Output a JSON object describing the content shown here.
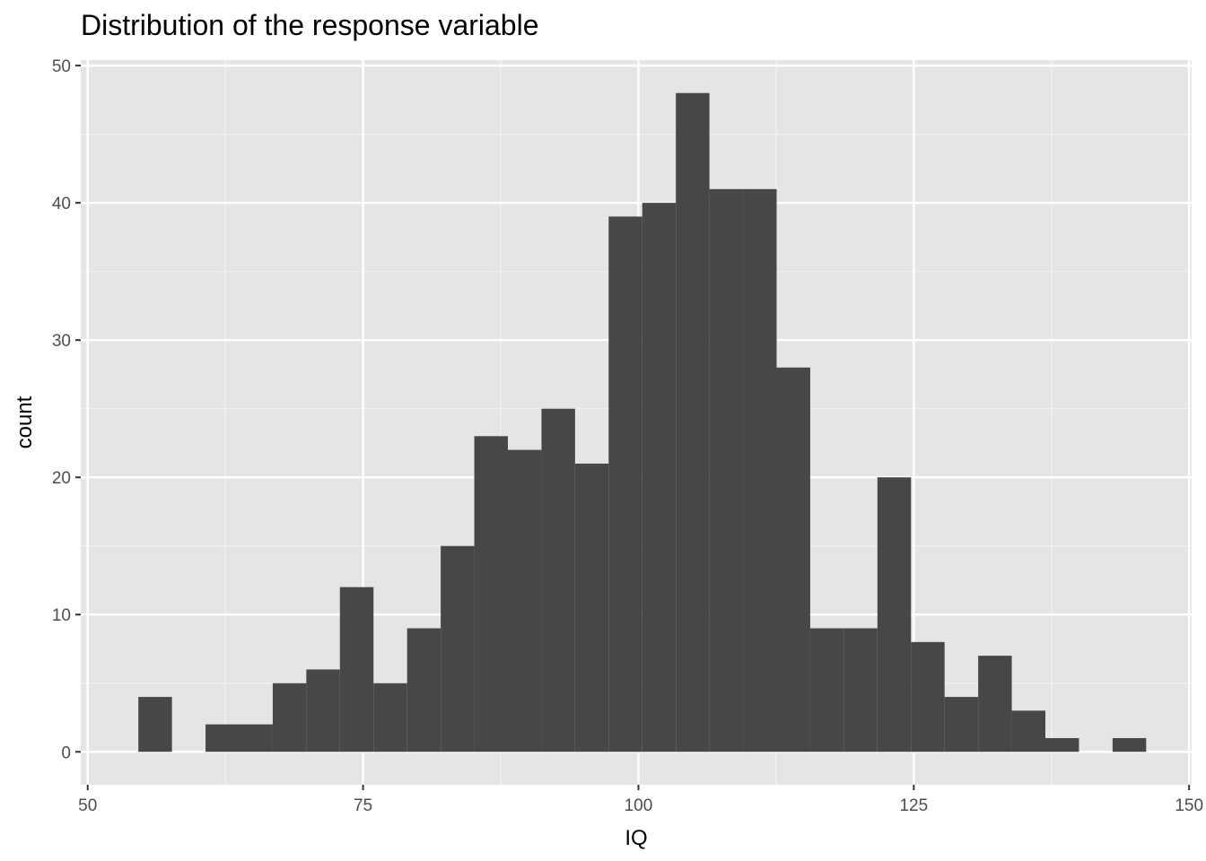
{
  "chart_data": {
    "type": "bar",
    "subtype": "histogram",
    "title": "Distribution of the response variable",
    "xlabel": "IQ",
    "ylabel": "count",
    "bin_width": 3.05,
    "bins": [
      {
        "x0": 54.6,
        "x1": 57.65,
        "count": 4
      },
      {
        "x0": 57.65,
        "x1": 60.7,
        "count": 0
      },
      {
        "x0": 60.7,
        "x1": 63.75,
        "count": 2
      },
      {
        "x0": 63.75,
        "x1": 66.8,
        "count": 2
      },
      {
        "x0": 66.8,
        "x1": 69.85,
        "count": 5
      },
      {
        "x0": 69.85,
        "x1": 72.9,
        "count": 6
      },
      {
        "x0": 72.9,
        "x1": 75.95,
        "count": 12
      },
      {
        "x0": 75.95,
        "x1": 79.0,
        "count": 5
      },
      {
        "x0": 79.0,
        "x1": 82.05,
        "count": 9
      },
      {
        "x0": 82.05,
        "x1": 85.1,
        "count": 15
      },
      {
        "x0": 85.1,
        "x1": 88.15,
        "count": 23
      },
      {
        "x0": 88.15,
        "x1": 91.2,
        "count": 22
      },
      {
        "x0": 91.2,
        "x1": 94.25,
        "count": 25
      },
      {
        "x0": 94.25,
        "x1": 97.3,
        "count": 21
      },
      {
        "x0": 97.3,
        "x1": 100.35,
        "count": 39
      },
      {
        "x0": 100.35,
        "x1": 103.4,
        "count": 40
      },
      {
        "x0": 103.4,
        "x1": 106.45,
        "count": 48
      },
      {
        "x0": 106.45,
        "x1": 109.5,
        "count": 41
      },
      {
        "x0": 109.5,
        "x1": 112.55,
        "count": 41
      },
      {
        "x0": 112.55,
        "x1": 115.6,
        "count": 28
      },
      {
        "x0": 115.6,
        "x1": 118.65,
        "count": 9
      },
      {
        "x0": 118.65,
        "x1": 121.7,
        "count": 9
      },
      {
        "x0": 121.7,
        "x1": 124.75,
        "count": 20
      },
      {
        "x0": 124.75,
        "x1": 127.8,
        "count": 8
      },
      {
        "x0": 127.8,
        "x1": 130.85,
        "count": 4
      },
      {
        "x0": 130.85,
        "x1": 133.9,
        "count": 7
      },
      {
        "x0": 133.9,
        "x1": 136.95,
        "count": 3
      },
      {
        "x0": 136.95,
        "x1": 140.0,
        "count": 1
      },
      {
        "x0": 140.0,
        "x1": 143.05,
        "count": 0
      },
      {
        "x0": 143.05,
        "x1": 146.1,
        "count": 1
      }
    ],
    "xlim": [
      50,
      150
    ],
    "ylim": [
      0,
      50
    ],
    "x_ticks": [
      50,
      75,
      100,
      125,
      150
    ],
    "y_ticks": [
      0,
      10,
      20,
      30,
      40,
      50
    ],
    "grid": true,
    "legend": "none",
    "colors": {
      "bar": "#474747",
      "panel_background": "#e5e5e5",
      "grid_major": "#ffffff",
      "grid_minor": "#f2f2f2",
      "tick_label": "#4d4d4d",
      "tick_mark": "#333333"
    }
  }
}
